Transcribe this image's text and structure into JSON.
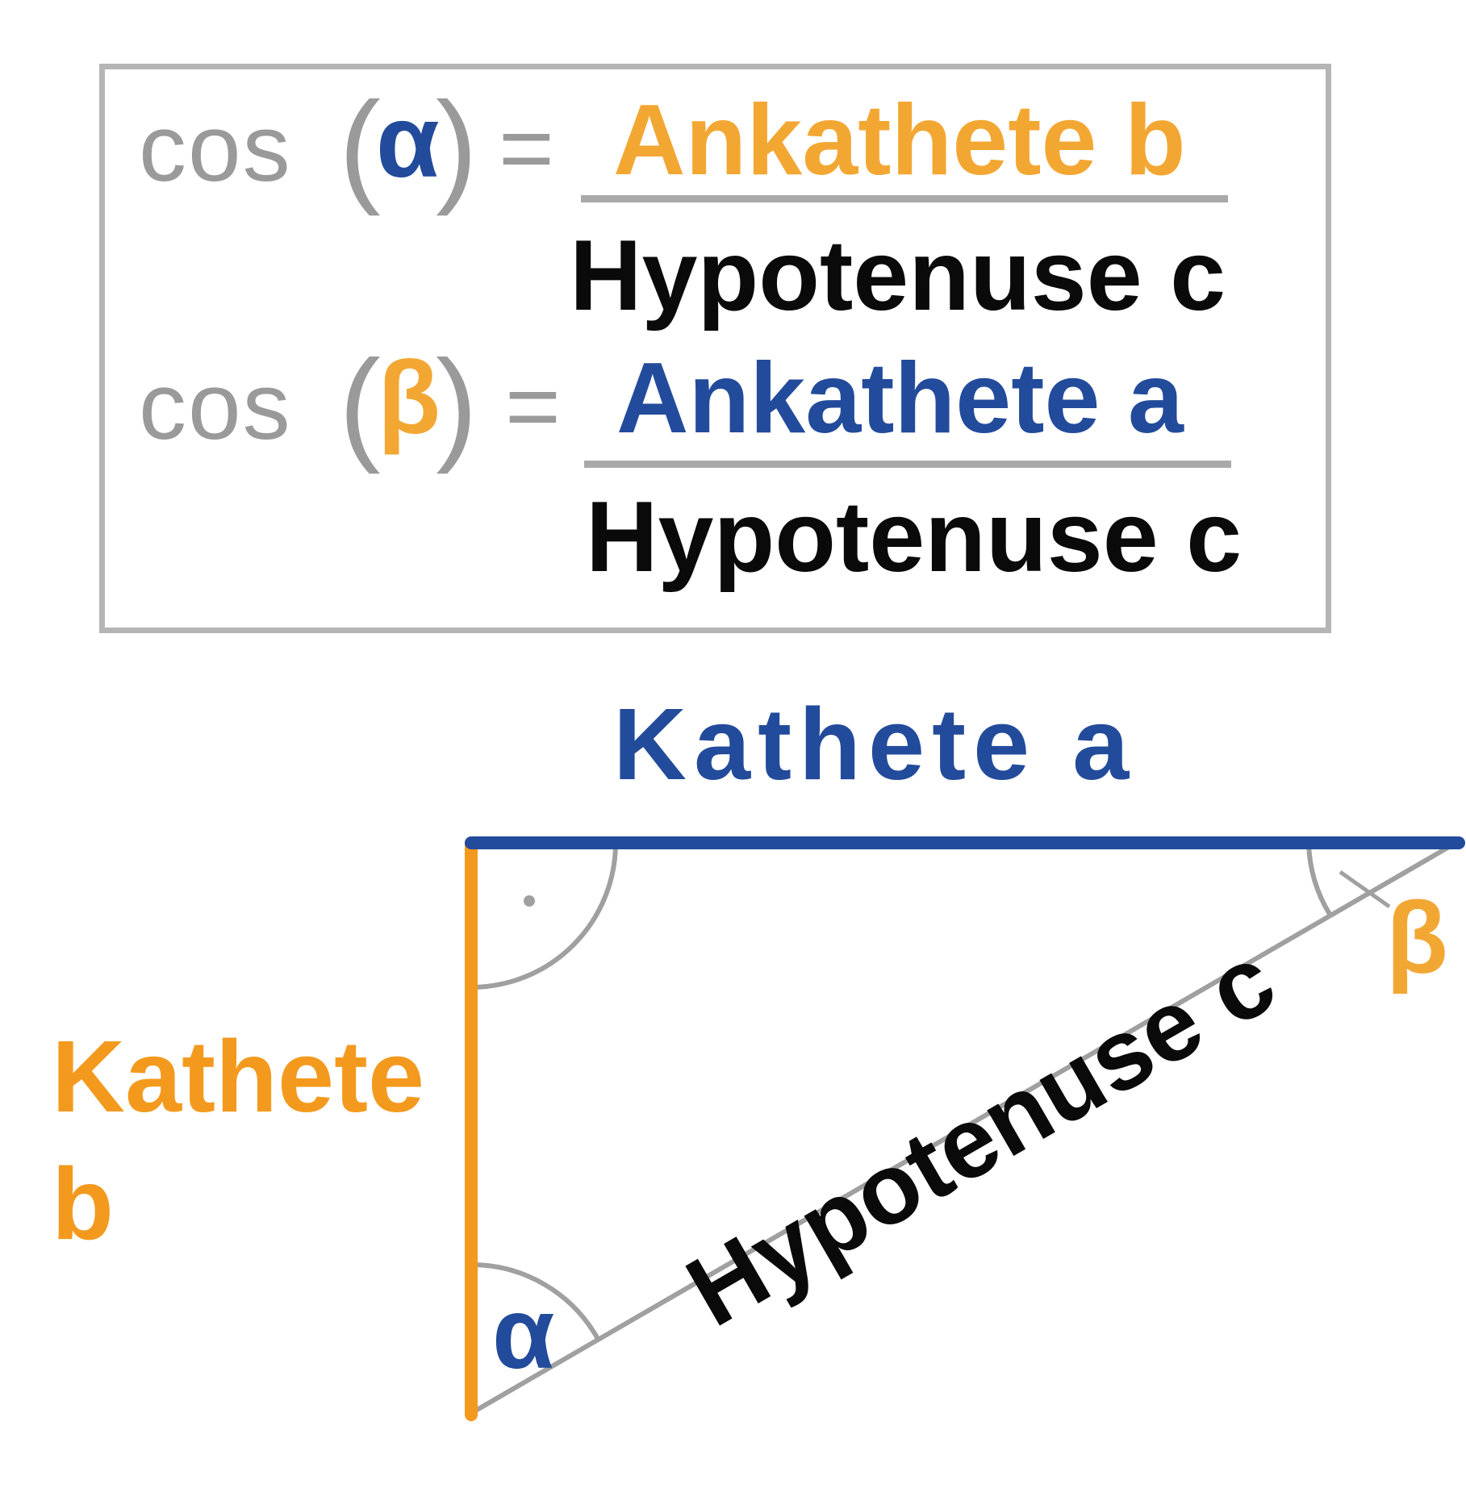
{
  "formulas": [
    {
      "func": "cos",
      "angle": "α",
      "equals": "=",
      "numerator": "Ankathete b",
      "denominator": "Hypotenuse c"
    },
    {
      "func": "cos",
      "angle": "β",
      "equals": "=",
      "numerator": "Ankathete a",
      "denominator": "Hypotenuse c"
    }
  ],
  "triangle": {
    "side_a_label": "Kathete a",
    "side_b_label_line1": "Kathete",
    "side_b_label_line2": "b",
    "hypotenuse_label": "Hypotenuse c",
    "angle_alpha": "α",
    "angle_beta": "β",
    "right_angle_dot": "·"
  },
  "colors": {
    "side_a": "#234b9b",
    "side_b": "#f39a1e",
    "hypotenuse": "#a0a0a0",
    "text_gray": "#9a9a9a",
    "frame": "#b5b5b5"
  }
}
